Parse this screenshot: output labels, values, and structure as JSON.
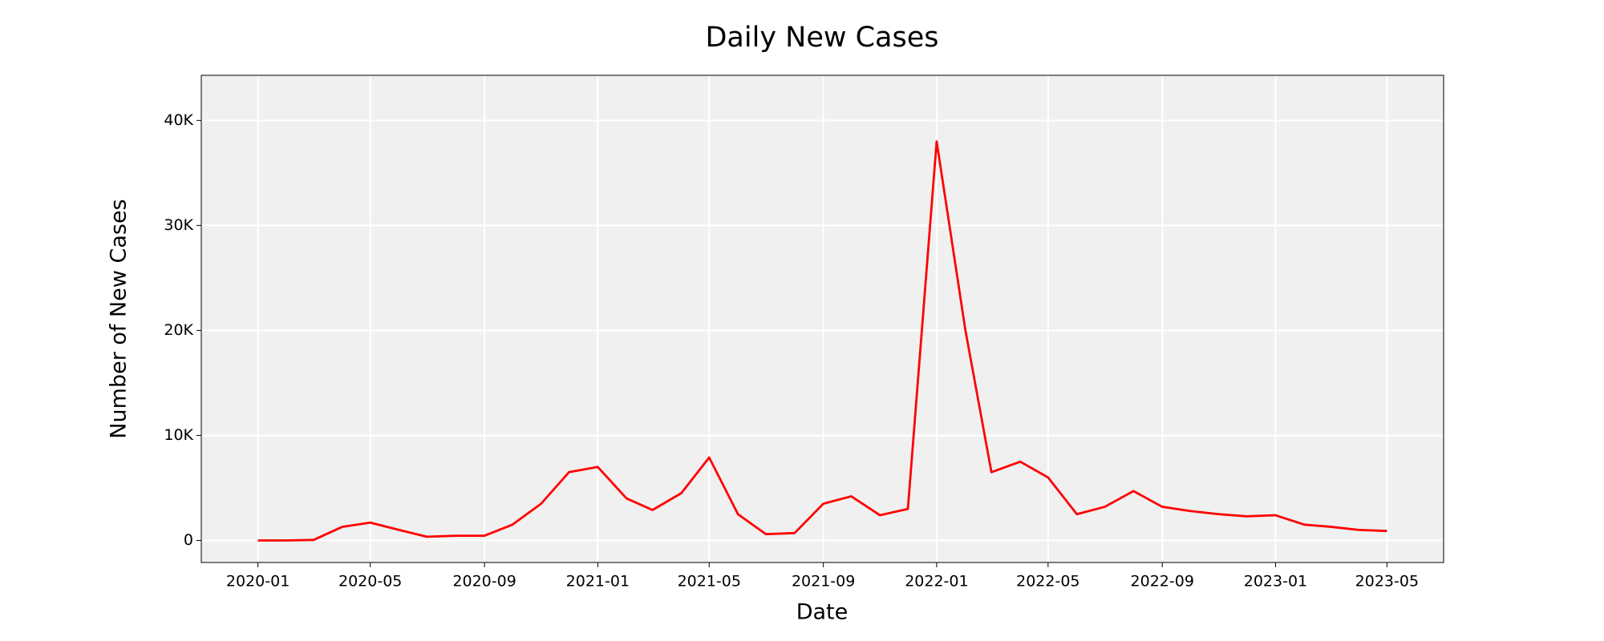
{
  "chart_data": {
    "type": "line",
    "title": "Daily New Cases",
    "x_label": "Date",
    "y_label": "Number of New Cases",
    "x": [
      "2020-01",
      "2020-02",
      "2020-03",
      "2020-04",
      "2020-05",
      "2020-06",
      "2020-07",
      "2020-08",
      "2020-09",
      "2020-10",
      "2020-11",
      "2020-12",
      "2021-01",
      "2021-02",
      "2021-03",
      "2021-04",
      "2021-05",
      "2021-06",
      "2021-07",
      "2021-08",
      "2021-09",
      "2021-10",
      "2021-11",
      "2021-12",
      "2022-01",
      "2022-02",
      "2022-03",
      "2022-04",
      "2022-05",
      "2022-06",
      "2022-07",
      "2022-08",
      "2022-09",
      "2022-10",
      "2022-11",
      "2022-12",
      "2023-01",
      "2023-02",
      "2023-03",
      "2023-04",
      "2023-05"
    ],
    "values": [
      0,
      0,
      50,
      1300,
      1700,
      1000,
      350,
      450,
      450,
      1500,
      3500,
      6500,
      7000,
      4000,
      2900,
      4500,
      7900,
      2500,
      600,
      700,
      3500,
      4200,
      2400,
      3000,
      38000,
      20000,
      6500,
      7500,
      6000,
      2500,
      3200,
      4700,
      3200,
      2800,
      2500,
      2300,
      2400,
      1500,
      1300,
      1000,
      900
    ],
    "color": "#ff0000",
    "xlim": [
      "2019-11",
      "2023-07"
    ],
    "xticks": [
      "2020-01",
      "2020-05",
      "2020-09",
      "2021-01",
      "2021-05",
      "2021-09",
      "2022-01",
      "2022-05",
      "2022-09",
      "2023-01",
      "2023-05"
    ],
    "ylim": [
      -2100,
      44300
    ],
    "yticks": [
      0,
      {
        "value": 10000,
        "label": "10K"
      },
      {
        "value": 20000,
        "label": "20K"
      },
      {
        "value": 30000,
        "label": "30K"
      },
      {
        "value": 40000,
        "label": "40K"
      }
    ],
    "grid": true
  }
}
